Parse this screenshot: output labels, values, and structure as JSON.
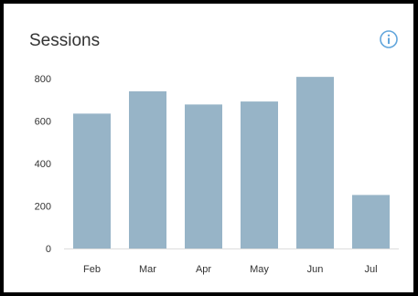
{
  "card": {
    "title": "Sessions"
  },
  "icons": {
    "info": "info-icon"
  },
  "colors": {
    "bar": "#97b4c7",
    "axis": "#dddddd",
    "info_icon": "#62a6dc",
    "frame": "#000000"
  },
  "chart_data": {
    "type": "bar",
    "title": "Sessions",
    "xlabel": "",
    "ylabel": "",
    "categories": [
      "Feb",
      "Mar",
      "Apr",
      "May",
      "Jun",
      "Jul"
    ],
    "values": [
      635,
      740,
      678,
      692,
      808,
      252
    ],
    "ylim": [
      0,
      800
    ],
    "yticks": [
      0,
      200,
      400,
      600,
      800
    ],
    "grid": false,
    "legend": "none"
  }
}
